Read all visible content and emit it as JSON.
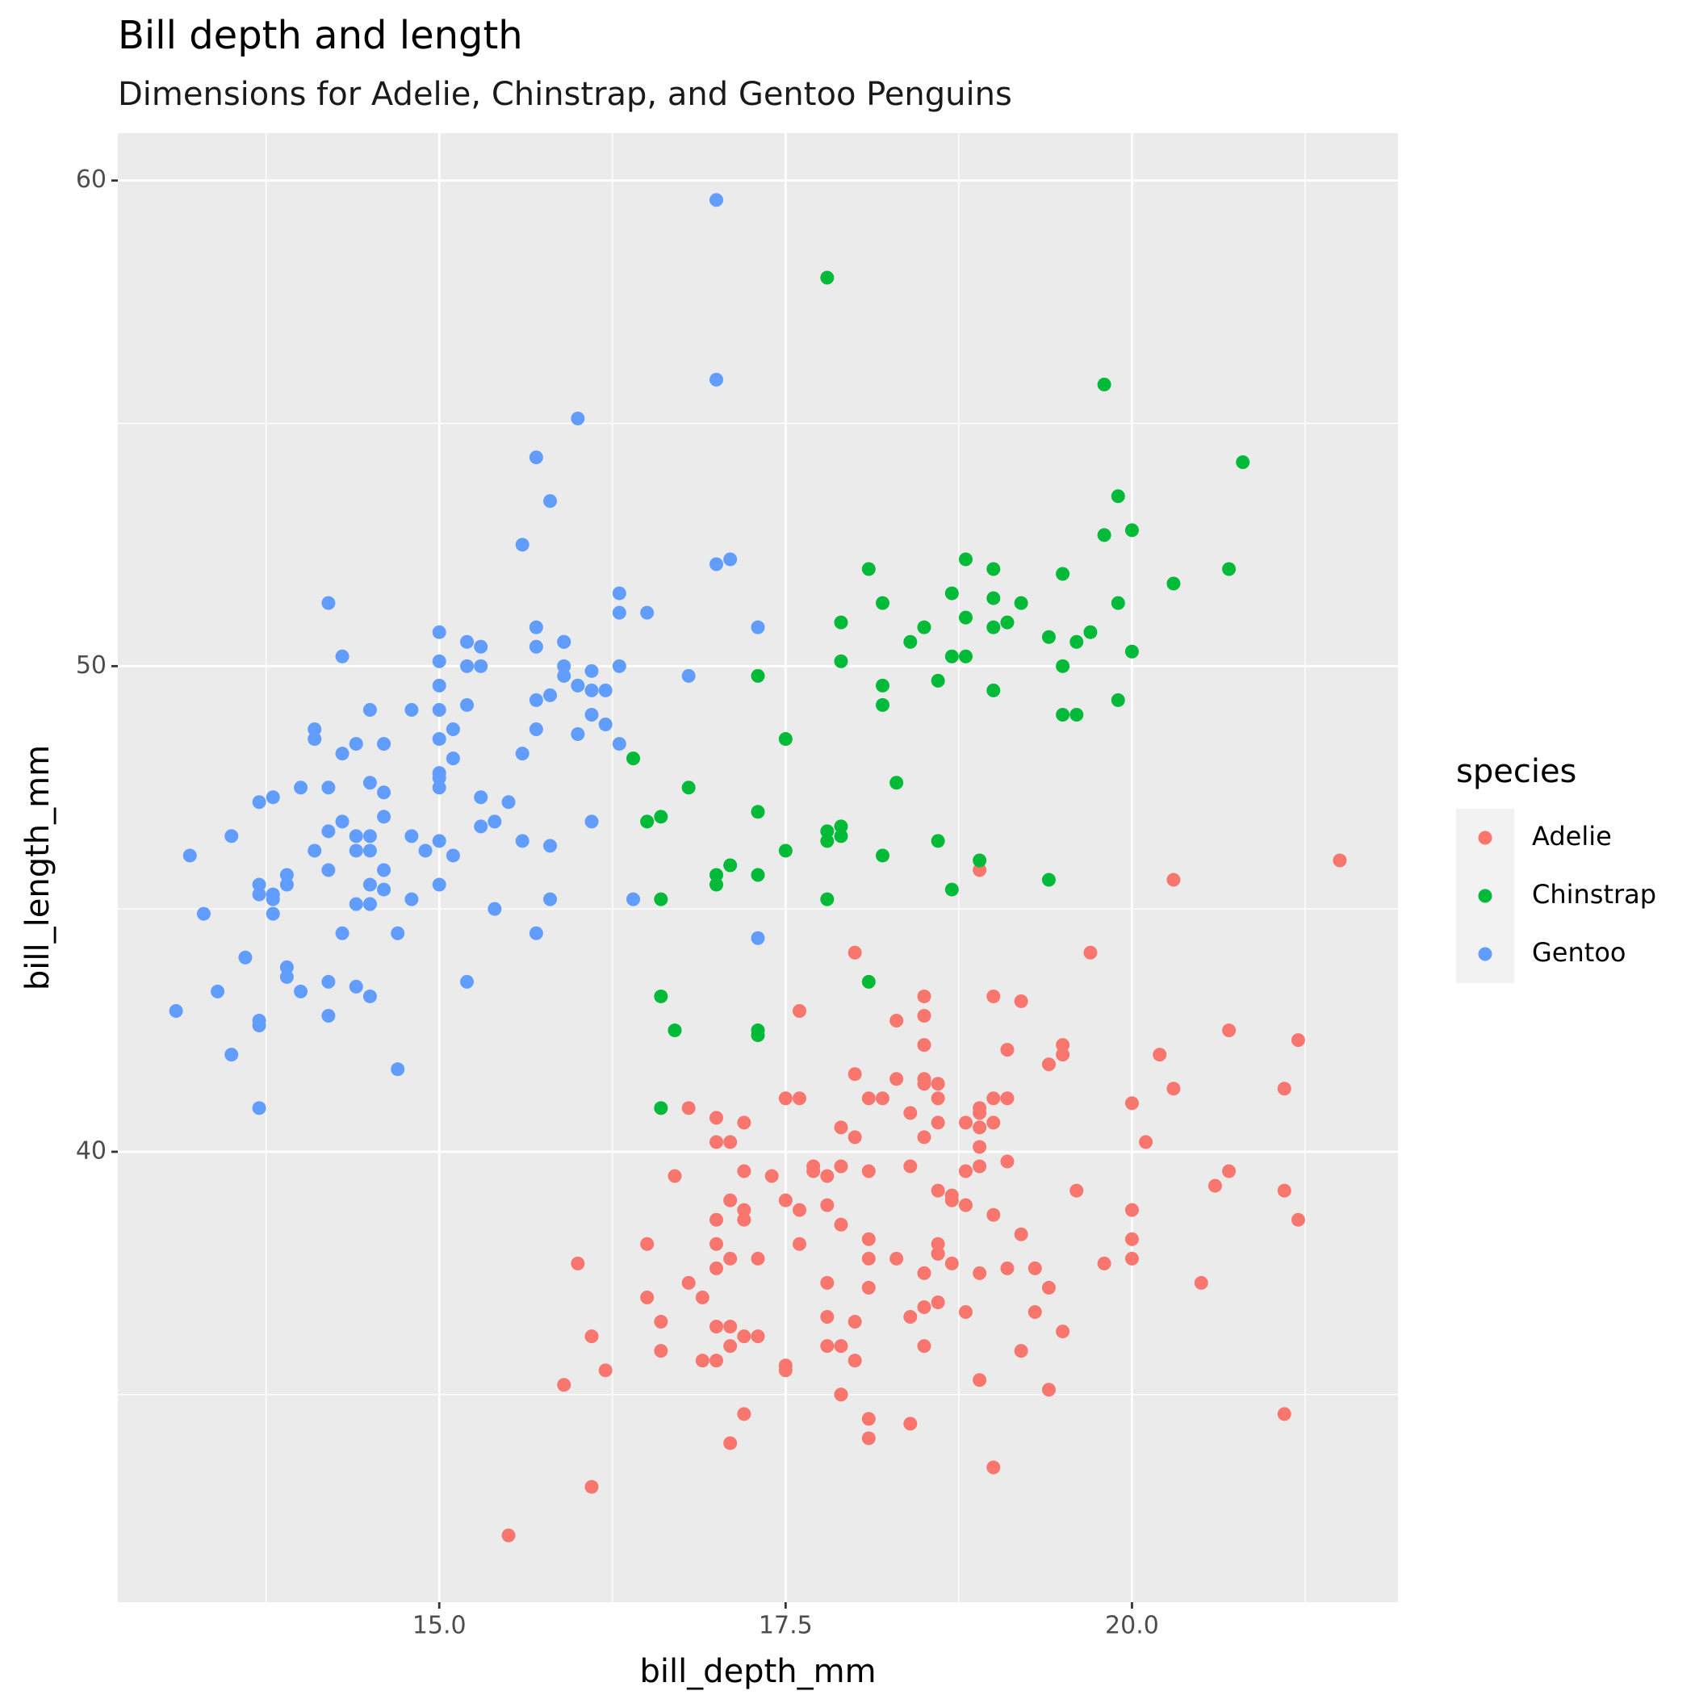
{
  "chart_data": {
    "type": "scatter",
    "title": "Bill depth and length",
    "subtitle": "Dimensions for Adelie, Chinstrap, and Gentoo Penguins",
    "x_label": "bill_depth_mm",
    "y_label": "bill_length_mm",
    "legend_title": "species",
    "legend_position": "right",
    "xlim": [
      12.68,
      21.92
    ],
    "ylim": [
      30.725,
      60.975
    ],
    "xticks": [
      {
        "value": 15,
        "label": "15.0"
      },
      {
        "value": 17.5,
        "label": "17.5"
      },
      {
        "value": 20,
        "label": "20.0"
      }
    ],
    "yticks": [
      40,
      50,
      60
    ],
    "x_minor_breaks": [
      13.75,
      16.25,
      18.75,
      21.25
    ],
    "y_minor_breaks": [
      35,
      45,
      55
    ],
    "grid": true,
    "series": [
      {
        "name": "Adelie",
        "color": "#F8766D",
        "x": [
          18.7,
          17.4,
          18.0,
          19.3,
          20.6,
          17.8,
          19.6,
          18.1,
          20.2,
          17.1,
          17.3,
          17.6,
          21.2,
          21.1,
          17.8,
          19.0,
          20.7,
          18.4,
          21.5,
          18.3,
          18.7,
          19.2,
          18.1,
          17.2,
          18.9,
          18.6,
          17.9,
          18.6,
          18.9,
          16.7,
          18.1,
          17.8,
          18.9,
          17.0,
          21.1,
          20.0,
          18.5,
          19.3,
          19.1,
          18.0,
          18.4,
          18.5,
          19.7,
          16.9,
          18.8,
          19.0,
          18.9,
          17.9,
          21.2,
          17.7,
          18.9,
          17.9,
          19.5,
          18.1,
          18.6,
          17.5,
          18.8,
          16.6,
          19.1,
          16.9,
          21.1,
          17.0,
          18.2,
          17.1,
          18.0,
          16.2,
          19.1,
          16.6,
          19.4,
          19.0,
          18.4,
          17.2,
          18.9,
          17.5,
          18.5,
          16.8,
          19.4,
          16.1,
          19.1,
          17.2,
          17.6,
          18.8,
          19.4,
          17.8,
          20.3,
          19.5,
          18.6,
          19.2,
          18.8,
          18.0,
          18.1,
          17.1,
          18.1,
          17.3,
          18.9,
          18.6,
          18.5,
          16.1,
          18.5,
          17.9,
          20.0,
          16.0,
          20.0,
          18.6,
          18.9,
          17.2,
          20.0,
          17.0,
          19.0,
          16.5,
          20.3,
          17.7,
          19.5,
          20.7,
          18.3,
          17.0,
          20.5,
          17.0,
          18.6,
          17.2,
          19.8,
          17.0,
          18.5,
          15.9,
          19.0,
          17.6,
          18.3,
          17.1,
          18.0,
          17.9,
          19.2,
          18.5,
          18.5,
          17.6,
          17.5,
          17.5,
          20.1,
          16.5,
          17.9,
          17.1,
          17.2,
          15.5,
          17.0,
          16.8,
          18.7,
          18.6,
          18.4,
          17.8,
          18.1,
          17.1,
          18.5
        ],
        "values": [
          39.1,
          39.5,
          40.3,
          36.7,
          39.3,
          38.9,
          39.2,
          34.1,
          42.0,
          37.8,
          37.8,
          41.1,
          38.6,
          34.6,
          36.6,
          38.7,
          42.5,
          34.4,
          46.0,
          37.8,
          37.7,
          35.9,
          38.2,
          38.8,
          35.3,
          40.6,
          40.5,
          37.9,
          40.5,
          39.5,
          37.2,
          39.5,
          40.9,
          36.4,
          39.2,
          38.8,
          42.2,
          37.6,
          39.8,
          36.5,
          40.8,
          36.0,
          44.1,
          37.0,
          39.6,
          41.1,
          37.5,
          36.0,
          42.3,
          39.6,
          40.1,
          35.0,
          42.0,
          34.5,
          41.4,
          39.0,
          40.6,
          36.5,
          37.6,
          35.7,
          41.3,
          37.6,
          41.1,
          36.4,
          41.6,
          35.5,
          41.1,
          35.9,
          41.8,
          33.5,
          39.7,
          39.6,
          45.8,
          35.5,
          42.8,
          40.9,
          37.2,
          36.2,
          42.1,
          34.6,
          42.9,
          36.7,
          35.1,
          37.3,
          41.3,
          36.3,
          36.9,
          38.3,
          38.9,
          35.7,
          41.1,
          34.0,
          39.6,
          36.2,
          40.8,
          38.1,
          40.3,
          33.1,
          43.2,
          35.0,
          41.0,
          37.7,
          37.8,
          37.9,
          39.7,
          38.6,
          38.2,
          38.1,
          43.2,
          38.1,
          45.6,
          39.7,
          42.2,
          39.6,
          42.7,
          38.6,
          37.3,
          35.7,
          41.1,
          36.2,
          37.7,
          40.2,
          41.4,
          35.2,
          40.6,
          38.8,
          41.5,
          39.0,
          44.1,
          38.5,
          43.1,
          36.8,
          37.5,
          38.1,
          41.1,
          35.6,
          40.2,
          37.0,
          39.7,
          40.2,
          40.6,
          32.1,
          40.7,
          37.3,
          39.0,
          39.2,
          36.6,
          36.0,
          37.8,
          36.0,
          41.5
        ]
      },
      {
        "name": "Chinstrap",
        "color": "#00BA38",
        "x": [
          17.9,
          19.5,
          19.2,
          18.7,
          19.8,
          17.8,
          18.2,
          18.2,
          18.9,
          19.9,
          17.8,
          20.3,
          17.3,
          18.1,
          17.1,
          19.6,
          20.0,
          17.8,
          18.6,
          18.2,
          17.3,
          17.5,
          16.6,
          19.4,
          17.9,
          19.0,
          18.4,
          19.0,
          17.8,
          20.0,
          16.6,
          20.8,
          16.7,
          18.8,
          18.6,
          16.8,
          18.3,
          20.7,
          16.6,
          19.9,
          19.5,
          17.5,
          19.1,
          17.0,
          17.9,
          18.5,
          17.9,
          19.6,
          18.7,
          17.3,
          16.4,
          19.0,
          17.3,
          19.7,
          17.3,
          18.8,
          16.6,
          19.9,
          18.8,
          19.4,
          19.5,
          16.5,
          17.0,
          19.8,
          18.1,
          18.2,
          19.0,
          18.7
        ],
        "values": [
          46.5,
          50.0,
          51.3,
          45.4,
          52.7,
          45.2,
          46.1,
          51.3,
          46.0,
          51.3,
          46.6,
          51.7,
          47.0,
          52.0,
          45.9,
          50.5,
          50.3,
          58.0,
          46.4,
          49.2,
          42.4,
          48.5,
          43.2,
          50.6,
          46.7,
          52.0,
          50.5,
          49.5,
          46.4,
          52.8,
          40.9,
          54.2,
          42.5,
          51.0,
          49.7,
          47.5,
          47.6,
          52.0,
          46.9,
          53.5,
          49.0,
          46.2,
          50.9,
          45.5,
          50.9,
          50.8,
          50.1,
          49.0,
          51.5,
          49.8,
          48.1,
          51.4,
          45.7,
          50.7,
          42.5,
          52.2,
          45.2,
          49.3,
          50.2,
          45.6,
          51.9,
          46.8,
          45.7,
          55.8,
          43.5,
          49.6,
          50.8,
          50.2
        ]
      },
      {
        "name": "Gentoo",
        "color": "#619CFF",
        "x": [
          13.2,
          16.3,
          14.1,
          15.2,
          14.5,
          13.5,
          14.6,
          15.3,
          13.4,
          15.4,
          13.7,
          16.1,
          13.7,
          14.6,
          14.6,
          15.7,
          13.5,
          15.2,
          14.5,
          15.1,
          14.3,
          14.5,
          14.5,
          15.8,
          13.1,
          15.1,
          14.3,
          15.0,
          14.3,
          15.3,
          15.3,
          14.2,
          14.5,
          17.0,
          14.8,
          16.3,
          13.7,
          17.3,
          13.6,
          15.7,
          13.7,
          16.0,
          13.7,
          15.0,
          15.9,
          13.9,
          13.9,
          15.9,
          13.3,
          15.8,
          14.2,
          14.1,
          14.4,
          15.0,
          14.4,
          15.4,
          13.9,
          15.0,
          14.5,
          15.3,
          13.8,
          14.9,
          13.9,
          15.7,
          14.2,
          16.8,
          14.4,
          16.2,
          14.2,
          15.0,
          15.0,
          15.6,
          15.6,
          14.8,
          15.0,
          16.0,
          14.2,
          16.3,
          13.8,
          16.4,
          14.5,
          15.6,
          14.6,
          15.9,
          13.8,
          17.3,
          14.4,
          14.2,
          14.0,
          17.0,
          15.0,
          17.1,
          14.5,
          16.1,
          14.7,
          15.7,
          15.8,
          14.6,
          14.4,
          16.5,
          15.0,
          17.0,
          15.5,
          15.0,
          13.8,
          16.1,
          14.7,
          15.8,
          14.0,
          15.1,
          15.2,
          15.9,
          15.2,
          16.3,
          14.1,
          16.0,
          15.7,
          16.2,
          13.7,
          14.3,
          15.7,
          14.8,
          16.1
        ],
        "values": [
          46.1,
          50.0,
          48.7,
          50.0,
          47.6,
          46.5,
          45.4,
          46.7,
          43.3,
          46.8,
          40.9,
          49.0,
          45.5,
          48.4,
          45.8,
          49.3,
          42.0,
          49.2,
          46.2,
          48.7,
          50.2,
          45.1,
          46.5,
          46.3,
          42.9,
          46.1,
          44.5,
          47.8,
          48.2,
          50.0,
          47.3,
          42.8,
          45.1,
          59.6,
          49.1,
          48.4,
          42.6,
          44.4,
          44.0,
          48.7,
          42.7,
          49.6,
          45.3,
          49.6,
          50.5,
          43.6,
          45.5,
          50.5,
          44.9,
          45.2,
          46.6,
          48.5,
          45.1,
          50.1,
          46.5,
          45.0,
          43.8,
          45.5,
          43.2,
          50.4,
          45.3,
          46.2,
          45.7,
          54.3,
          45.8,
          49.8,
          46.2,
          49.5,
          43.5,
          50.7,
          47.7,
          46.4,
          48.2,
          46.5,
          46.4,
          48.6,
          47.5,
          51.1,
          45.2,
          45.2,
          49.1,
          52.5,
          47.4,
          50.0,
          44.9,
          50.8,
          43.4,
          51.3,
          47.5,
          52.1,
          47.5,
          52.2,
          45.5,
          49.5,
          44.5,
          50.8,
          49.4,
          46.9,
          48.4,
          51.1,
          48.5,
          55.9,
          47.2,
          49.1,
          47.3,
          46.8,
          41.7,
          53.4,
          43.3,
          48.1,
          50.5,
          49.8,
          43.5,
          51.5,
          46.2,
          55.1,
          44.5,
          48.8,
          47.2,
          46.8,
          50.4,
          45.2,
          49.9
        ]
      }
    ]
  }
}
